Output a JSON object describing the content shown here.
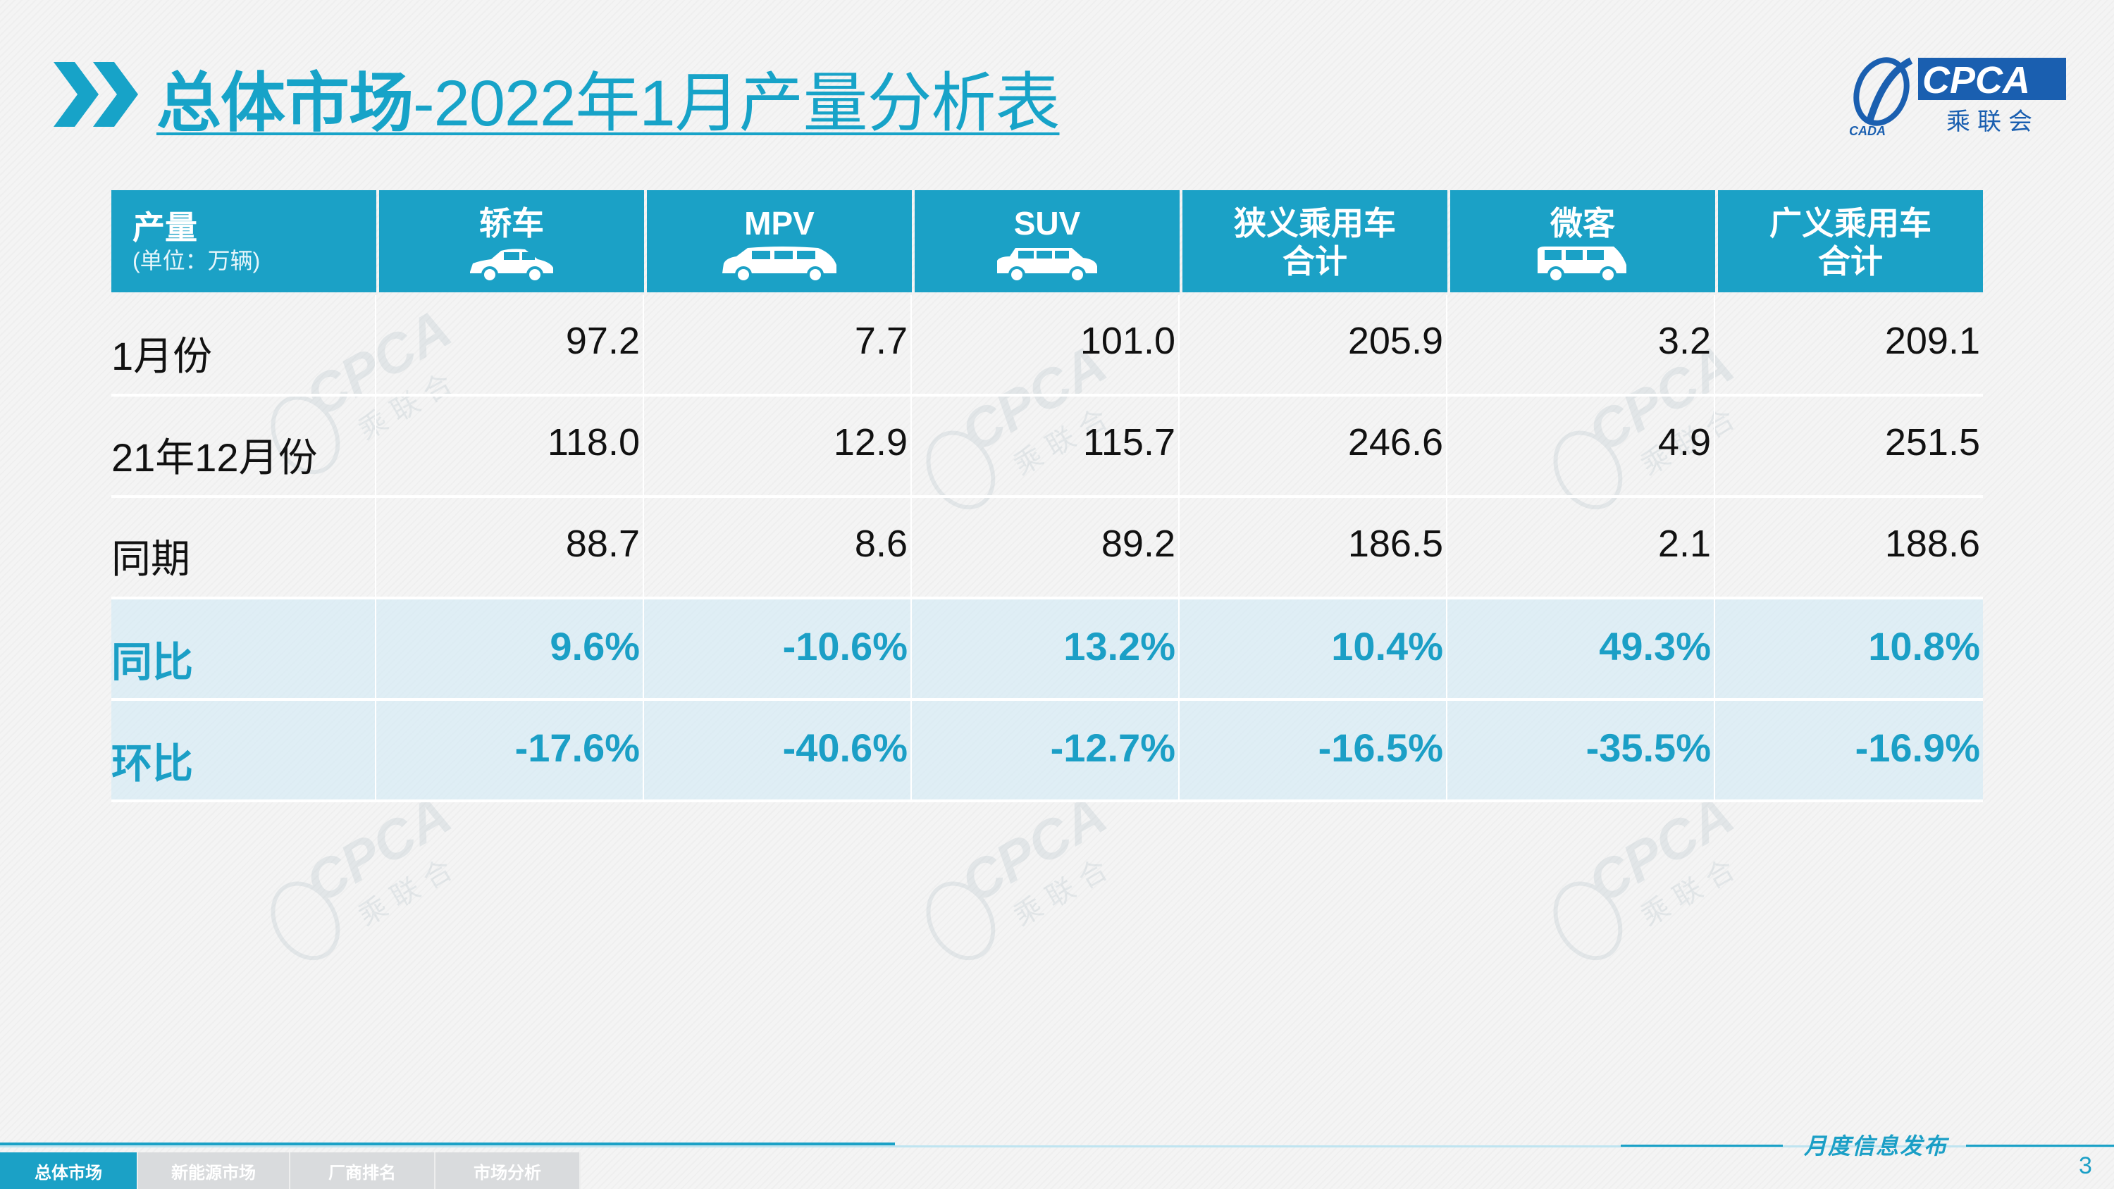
{
  "title": {
    "bold_part": "总体市场",
    "rest_part": "-2022年1月产量分析表"
  },
  "logo": {
    "latin": "CPCA",
    "chinese": "乘联会",
    "small": "CADA"
  },
  "table": {
    "header": {
      "label": "产量",
      "unit": "(单位：万辆)",
      "columns": [
        {
          "line1": "轿车",
          "line2": "",
          "icon": "sedan-car-icon"
        },
        {
          "line1": "MPV",
          "line2": "",
          "icon": "mpv-car-icon"
        },
        {
          "line1": "SUV",
          "line2": "",
          "icon": "suv-car-icon"
        },
        {
          "line1": "狭义乘用车",
          "line2": "合计",
          "icon": ""
        },
        {
          "line1": "微客",
          "line2": "",
          "icon": "minivan-icon"
        },
        {
          "line1": "广义乘用车",
          "line2": "合计",
          "icon": ""
        }
      ]
    },
    "rows": [
      {
        "label": "1月份",
        "values": [
          "97.2",
          "7.7",
          "101.0",
          "205.9",
          "3.2",
          "209.1"
        ]
      },
      {
        "label": "21年12月份",
        "values": [
          "118.0",
          "12.9",
          "115.7",
          "246.6",
          "4.9",
          "251.5"
        ]
      },
      {
        "label": "同期",
        "values": [
          "88.7",
          "8.6",
          "89.2",
          "186.5",
          "2.1",
          "188.6"
        ]
      },
      {
        "label": "同比",
        "values": [
          "9.6%",
          "-10.6%",
          "13.2%",
          "10.4%",
          "49.3%",
          "10.8%"
        ]
      },
      {
        "label": "环比",
        "values": [
          "-17.6%",
          "-40.6%",
          "-12.7%",
          "-16.5%",
          "-35.5%",
          "-16.9%"
        ]
      }
    ]
  },
  "footer": {
    "publication": "月度信息发布",
    "tabs": [
      {
        "label": "总体市场",
        "active": true
      },
      {
        "label": "新能源市场",
        "active": false
      },
      {
        "label": "厂商排名",
        "active": false
      },
      {
        "label": "市场分析",
        "active": false
      }
    ],
    "page_number": "3"
  },
  "colors": {
    "accent": "#1ba1c6",
    "header_bg": "#1ba1c6",
    "percent_text": "#1b9fc6"
  }
}
